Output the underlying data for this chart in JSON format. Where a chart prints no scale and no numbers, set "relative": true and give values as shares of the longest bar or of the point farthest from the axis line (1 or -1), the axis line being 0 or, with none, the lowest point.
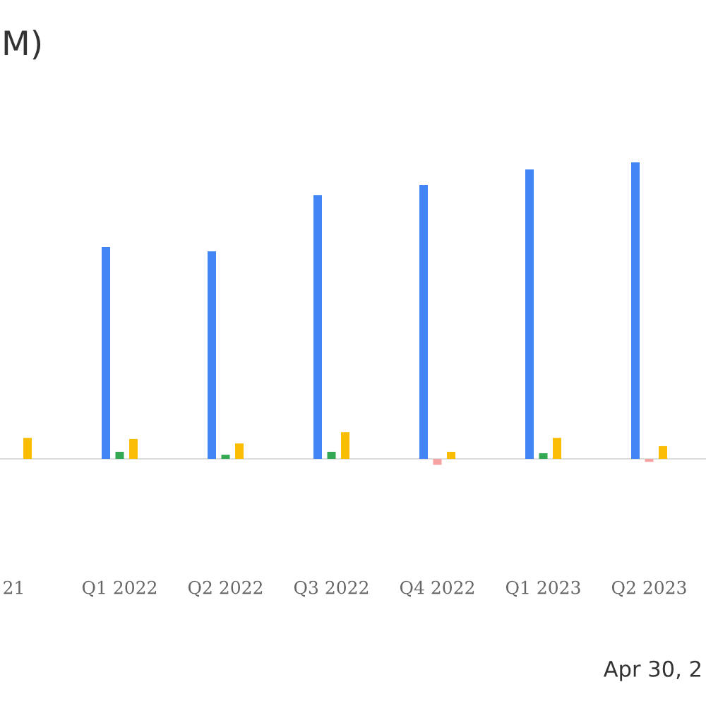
{
  "chart_data": {
    "type": "bar",
    "title": "M)",
    "relative": true,
    "categories": [
      "21",
      "Q1 2022",
      "Q2 2022",
      "Q3 2022",
      "Q4 2022",
      "Q1 2023",
      "Q2 2023"
    ],
    "series": [
      {
        "color": "#4285f4",
        "values": [
          null,
          0.714,
          0.7,
          0.89,
          0.924,
          0.976,
          1
        ]
      },
      {
        "colors": [
          "#34a853",
          "#34a853",
          "#34a853",
          "#34a853",
          "#f4a3a3",
          "#34a853",
          "#f4a3a3"
        ],
        "values": [
          null,
          0.024,
          0.014,
          0.024,
          -0.02,
          0.019,
          -0.01
        ]
      },
      {
        "color": "#fbbc04",
        "values": [
          0.071,
          0.067,
          0.052,
          0.09,
          0.024,
          0.071,
          0.043
        ]
      }
    ],
    "annotations": [
      "Apr 30, 2"
    ]
  }
}
